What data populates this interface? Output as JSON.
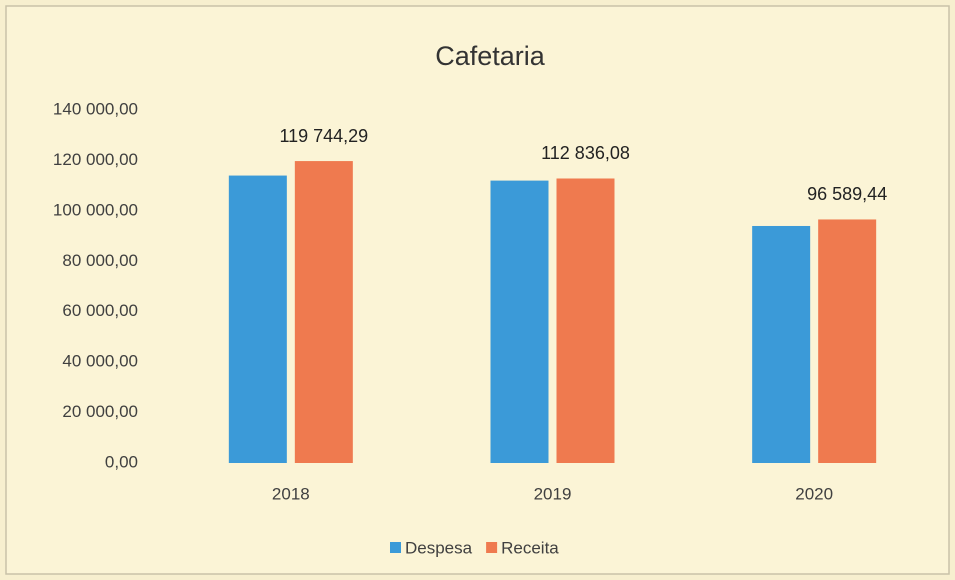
{
  "chart_data": {
    "type": "bar",
    "title": "Cafetaria",
    "categories": [
      "2018",
      "2019",
      "2020"
    ],
    "series": [
      {
        "name": "Despesa",
        "color": "#3b9ad8",
        "values": [
          114000,
          112000,
          94000
        ]
      },
      {
        "name": "Receita",
        "color": "#ef7a4f",
        "values": [
          119744.29,
          112836.08,
          96589.44
        ],
        "value_labels": [
          "119 744,29",
          "112 836,08",
          "96 589,44"
        ]
      }
    ],
    "ylim": [
      0,
      140000
    ],
    "yticks": [
      {
        "value": 0,
        "label": "0,00"
      },
      {
        "value": 20000,
        "label": "20 000,00"
      },
      {
        "value": 40000,
        "label": "40 000,00"
      },
      {
        "value": 60000,
        "label": "60 000,00"
      },
      {
        "value": 80000,
        "label": "80 000,00"
      },
      {
        "value": 100000,
        "label": "100 000,00"
      },
      {
        "value": 120000,
        "label": "120 000,00"
      },
      {
        "value": 140000,
        "label": "140 000,00"
      }
    ],
    "grid": false,
    "legend": "bottom"
  }
}
